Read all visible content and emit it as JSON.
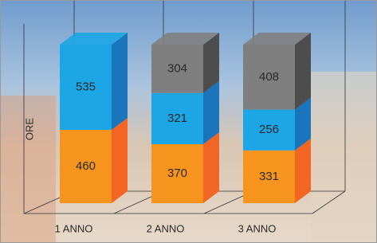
{
  "chart_data": {
    "type": "bar3d_stacked",
    "y_label": "ORE",
    "categories": [
      "1 ANNO",
      "2 ANNO",
      "3 ANNO"
    ],
    "series": [
      {
        "color": "#f7941d",
        "side_color": "#f26522",
        "values": [
          460,
          370,
          331
        ]
      },
      {
        "color": "#1ca6e6",
        "side_color": "#1b75bc",
        "values": [
          535,
          321,
          256
        ]
      },
      {
        "color": "#7f7f7f",
        "side_color": "#4d4d4d",
        "values": [
          null,
          304,
          408
        ]
      }
    ],
    "ylim": [
      0,
      1000
    ]
  }
}
